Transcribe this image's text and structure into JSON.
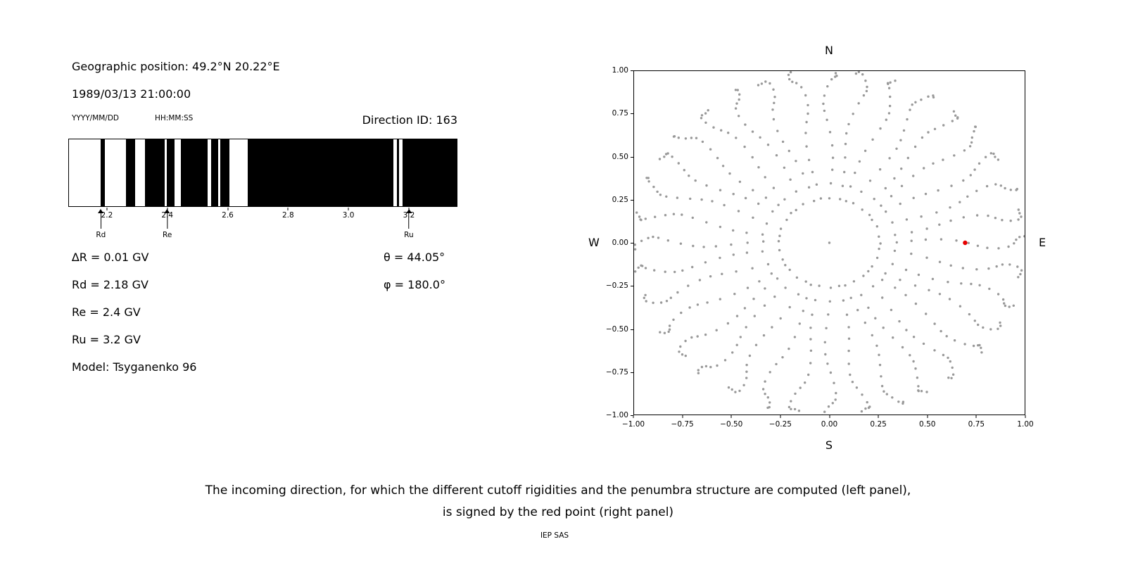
{
  "page": {
    "background": "#ffffff",
    "caption_line1": "The incoming direction, for which the different cutoff rigidities and the penumbra structure are computed (left panel),",
    "caption_line2": "is signed by the red point (right panel)",
    "credit": "IEP SAS"
  },
  "info": {
    "geo_position": "Geographic position: 49.2°N 20.22°E",
    "datetime": "1989/03/13 21:00:00",
    "date_format_hint": "YYYY/MM/DD",
    "time_format_hint": "HH:MM:SS",
    "direction_id": "Direction ID: 163",
    "delta_r": "∆R = 0.01 GV",
    "rd": "Rd = 2.18 GV",
    "re": "Re = 2.4 GV",
    "ru": "Ru = 3.2 GV",
    "model": "Model: Tsyganenko 96",
    "theta": "θ = 44.05°",
    "phi": "φ = 180.0°"
  },
  "chart_data": [
    {
      "name": "penumbra-structure",
      "type": "bar",
      "title": "",
      "xlabel": "",
      "ylabel": "",
      "xlim": [
        2.072,
        3.361
      ],
      "bar_color": "#000000",
      "background": "#ffffff",
      "ticks": [
        {
          "value": 2.2,
          "label": "2.2"
        },
        {
          "value": 2.4,
          "label": "2.4"
        },
        {
          "value": 2.6,
          "label": "2.6"
        },
        {
          "value": 2.8,
          "label": "2.8"
        },
        {
          "value": 3.0,
          "label": "3.0"
        },
        {
          "value": 3.2,
          "label": "3.2"
        }
      ],
      "black_intervals_gv": [
        [
          2.178,
          2.192
        ],
        [
          2.261,
          2.291
        ],
        [
          2.324,
          2.391
        ],
        [
          2.398,
          2.424
        ],
        [
          2.445,
          2.534
        ],
        [
          2.545,
          2.569
        ],
        [
          2.576,
          2.606
        ],
        [
          2.666,
          3.151
        ],
        [
          3.161,
          3.17
        ],
        [
          3.182,
          3.361
        ]
      ],
      "markers": [
        {
          "label": "Rd",
          "x": 2.18
        },
        {
          "label": "Re",
          "x": 2.4
        },
        {
          "label": "Ru",
          "x": 3.2
        }
      ]
    },
    {
      "name": "incoming-directions",
      "type": "scatter",
      "title": "",
      "xlim": [
        -1,
        1
      ],
      "ylim": [
        -1,
        1
      ],
      "grid": false,
      "dot_color": "#999999",
      "compass": {
        "north": "N",
        "south": "S",
        "east": "E",
        "west": "W"
      },
      "x_ticks": [
        {
          "value": -1.0,
          "label": "−1.00"
        },
        {
          "value": -0.75,
          "label": "−0.75"
        },
        {
          "value": -0.5,
          "label": "−0.50"
        },
        {
          "value": -0.25,
          "label": "−0.25"
        },
        {
          "value": 0.0,
          "label": "0.00"
        },
        {
          "value": 0.25,
          "label": "0.25"
        },
        {
          "value": 0.5,
          "label": "0.50"
        },
        {
          "value": 0.75,
          "label": "0.75"
        },
        {
          "value": 1.0,
          "label": "1.00"
        }
      ],
      "y_ticks": [
        {
          "value": 1.0,
          "label": "1.00"
        },
        {
          "value": 0.75,
          "label": "0.75"
        },
        {
          "value": 0.5,
          "label": "0.50"
        },
        {
          "value": 0.25,
          "label": "0.25"
        },
        {
          "value": 0.0,
          "label": "0.00"
        },
        {
          "value": -0.25,
          "label": "−0.25"
        },
        {
          "value": -0.5,
          "label": "−0.50"
        },
        {
          "value": -0.75,
          "label": "−0.75"
        },
        {
          "value": -1.0,
          "label": "−1.00"
        }
      ],
      "spokes": {
        "azimuth_count": 36,
        "radii": [
          0.259,
          0.342,
          0.423,
          0.5,
          0.574,
          0.643,
          0.707,
          0.766,
          0.819,
          0.866,
          0.906,
          0.94,
          0.966,
          0.985,
          0.996,
          1.0
        ]
      },
      "center_dot": {
        "x": 0,
        "y": 0
      },
      "red_point": {
        "x": 0.695,
        "y": 0.0,
        "color": "#e60000"
      }
    }
  ]
}
